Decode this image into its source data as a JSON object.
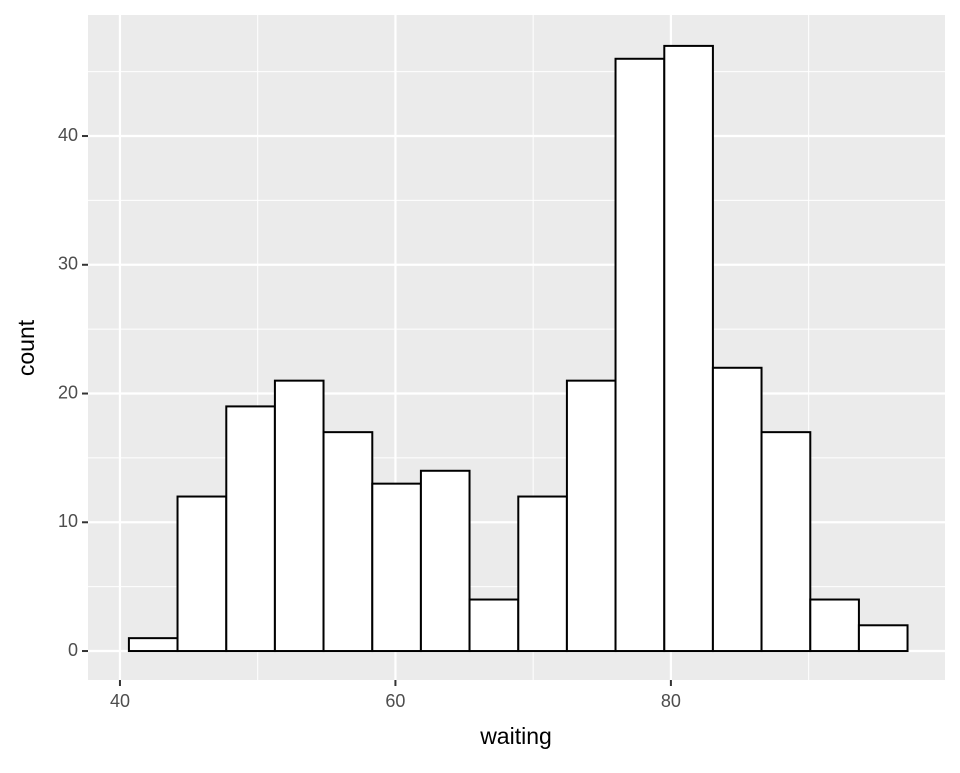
{
  "chart_data": {
    "type": "histogram",
    "x_label": "waiting",
    "y_label": "count",
    "bins": [
      40.65,
      44.18,
      47.72,
      51.25,
      54.78,
      58.32,
      61.85,
      65.38,
      68.92,
      72.45,
      75.98,
      79.52,
      83.05,
      86.58,
      90.12,
      93.65,
      97.18
    ],
    "values": [
      1,
      12,
      19,
      21,
      17,
      13,
      14,
      4,
      12,
      21,
      46,
      47,
      22,
      17,
      4,
      2
    ],
    "fill": "#ffffff",
    "edge_color": "#000000",
    "background": "#ebebeb",
    "xlim": [
      37.68,
      99.9
    ],
    "ylim": [
      -2.25,
      49.4
    ],
    "xticks": [
      40,
      60,
      80
    ],
    "yticks": [
      0,
      10,
      20,
      30,
      40
    ],
    "minor_xticks": [
      50,
      70,
      90
    ],
    "minor_yticks": [
      5,
      15,
      25,
      35,
      45
    ],
    "grid": true
  }
}
